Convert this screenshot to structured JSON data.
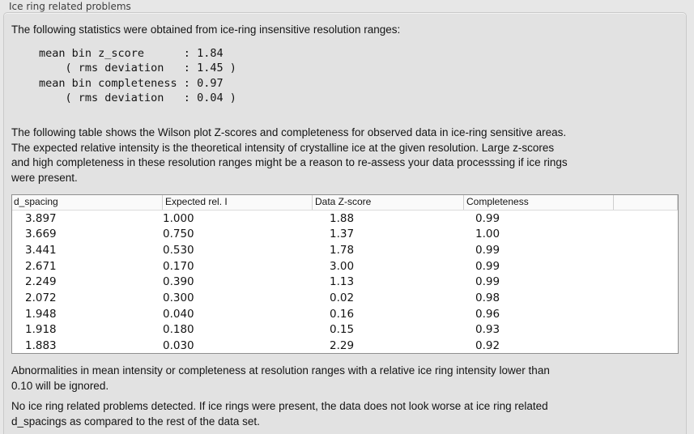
{
  "colors": {
    "page_bg": "#e7e7e7",
    "panel_bg": "#e2e2e2",
    "panel_border": "#c9c9c9",
    "title_text": "#3d3d3d",
    "text": "#141414",
    "table_bg": "#ffffff",
    "table_border": "#909090",
    "table_header_bg": "#fafafa",
    "table_header_divider": "#cfcfcf"
  },
  "panel": {
    "title": "Ice ring related problems"
  },
  "intro_text": "The following statistics were obtained from ice-ring insensitive resolution ranges:",
  "stats": {
    "mean_bin_z_score": "1.84",
    "z_score_rms_deviation": "1.45",
    "mean_bin_completeness": "0.97",
    "completeness_rms_deviation": "0.04",
    "block_text": "mean bin z_score      : 1.84\n    ( rms deviation   : 1.45 )\nmean bin completeness : 0.97\n    ( rms deviation   : 0.04 )"
  },
  "table_description": "The following table shows the Wilson plot Z-scores and completeness for observed data in ice-ring sensitive areas.\nThe expected relative intensity is the theoretical intensity of crystalline ice at the given resolution. Large z-scores\nand high completeness in these resolution ranges might be a reason to re-assess your data processsing if ice rings\nwere present.",
  "table": {
    "columns": [
      "d_spacing",
      "Expected rel. I",
      "Data Z-score",
      "Completeness",
      ""
    ],
    "rows": [
      [
        "3.897",
        "1.000",
        "1.88",
        "0.99"
      ],
      [
        "3.669",
        "0.750",
        "1.37",
        "1.00"
      ],
      [
        "3.441",
        "0.530",
        "1.78",
        "0.99"
      ],
      [
        "2.671",
        "0.170",
        "3.00",
        "0.99"
      ],
      [
        "2.249",
        "0.390",
        "1.13",
        "0.99"
      ],
      [
        "2.072",
        "0.300",
        "0.02",
        "0.98"
      ],
      [
        "1.948",
        "0.040",
        "0.16",
        "0.96"
      ],
      [
        "1.918",
        "0.180",
        "0.15",
        "0.93"
      ],
      [
        "1.883",
        "0.030",
        "2.29",
        "0.92"
      ]
    ]
  },
  "ignore_note": "Abnormalities in mean intensity or completeness at resolution ranges with a relative ice ring intensity lower than\n0.10 will be ignored.",
  "conclusion": "No ice ring related problems detected. If ice rings were present, the data does not look worse at ice ring related\nd_spacings as compared to the rest of the data set."
}
